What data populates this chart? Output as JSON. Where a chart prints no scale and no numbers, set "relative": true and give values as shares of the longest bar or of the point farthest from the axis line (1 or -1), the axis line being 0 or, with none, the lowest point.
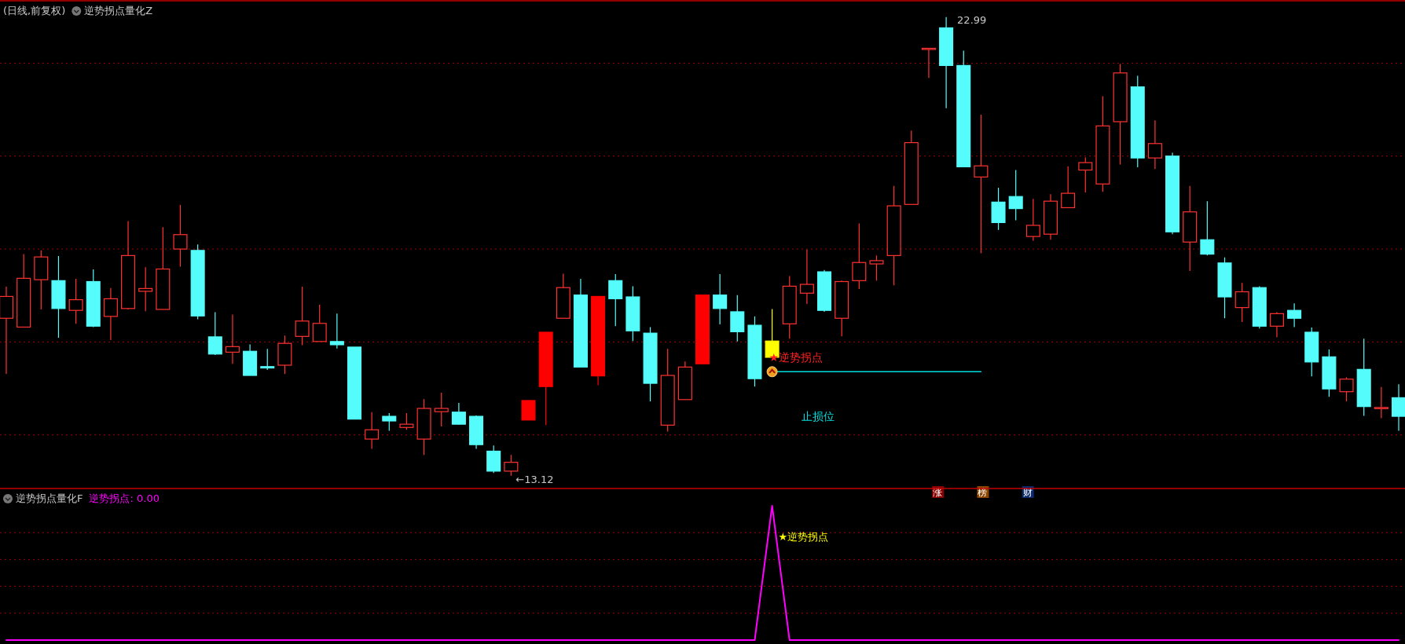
{
  "chart_data": [
    {
      "type": "candlestick",
      "title": "(日线,前复权)",
      "subtitle": "逆势拐点量化Z",
      "grid": "y",
      "categories": [
        null,
        null,
        null,
        null,
        null,
        null,
        null,
        null,
        null,
        null,
        null,
        null,
        null,
        null,
        null,
        null,
        null,
        null,
        null,
        null,
        null,
        null,
        null,
        null,
        null,
        null,
        null,
        null,
        null,
        null,
        null,
        null,
        null,
        null,
        null,
        null,
        null,
        null,
        null,
        null,
        null,
        null,
        null,
        null,
        null,
        null,
        null,
        null,
        null,
        null,
        null,
        null,
        null,
        null,
        null,
        null,
        null,
        null,
        null,
        null,
        null,
        null,
        null,
        null,
        null,
        null,
        null,
        null,
        null,
        null,
        null,
        null,
        null,
        null,
        null,
        null,
        null,
        null,
        null,
        null,
        null
      ],
      "ohlc": [
        [
          16.51,
          17.19,
          15.31,
          16.98
        ],
        [
          16.32,
          17.89,
          16.32,
          17.37
        ],
        [
          17.34,
          17.97,
          16.7,
          17.83
        ],
        [
          17.32,
          17.85,
          16.09,
          16.72
        ],
        [
          16.68,
          17.36,
          16.39,
          16.91
        ],
        [
          17.3,
          17.56,
          16.32,
          16.34
        ],
        [
          16.55,
          17.16,
          16.04,
          16.93
        ],
        [
          16.72,
          18.6,
          16.7,
          17.86
        ],
        [
          17.09,
          17.61,
          16.66,
          17.15
        ],
        [
          16.7,
          18.47,
          16.7,
          17.57
        ],
        [
          18.0,
          18.95,
          17.62,
          18.31
        ],
        [
          17.97,
          18.1,
          16.49,
          16.56
        ],
        [
          16.11,
          16.64,
          15.72,
          15.74
        ],
        [
          15.78,
          16.59,
          15.53,
          15.9
        ],
        [
          15.8,
          15.95,
          15.28,
          15.28
        ],
        [
          15.47,
          15.85,
          15.4,
          15.44
        ],
        [
          15.5,
          16.14,
          15.31,
          15.97
        ],
        [
          16.12,
          17.19,
          15.93,
          16.45
        ],
        [
          16.01,
          16.8,
          16.01,
          16.4
        ],
        [
          16.01,
          16.61,
          15.86,
          15.94
        ],
        [
          15.89,
          15.89,
          14.34,
          14.34
        ],
        [
          13.91,
          14.49,
          13.7,
          14.11
        ],
        [
          14.4,
          14.47,
          14.09,
          14.3
        ],
        [
          14.16,
          14.47,
          14.11,
          14.23
        ],
        [
          13.91,
          14.77,
          13.57,
          14.57
        ],
        [
          14.5,
          14.91,
          14.18,
          14.57
        ],
        [
          14.49,
          14.69,
          14.22,
          14.23
        ],
        [
          14.4,
          14.42,
          13.7,
          13.79
        ],
        [
          13.65,
          13.77,
          13.18,
          13.22
        ],
        [
          13.22,
          13.57,
          13.12,
          13.41
        ],
        [
          14.32,
          14.74,
          14.32,
          14.74
        ],
        [
          15.04,
          16.21,
          14.21,
          16.21
        ],
        [
          16.51,
          17.47,
          16.51,
          17.17
        ],
        [
          17.01,
          17.36,
          15.46,
          15.46
        ],
        [
          15.27,
          16.98,
          15.07,
          16.98
        ],
        [
          17.32,
          17.46,
          16.34,
          16.93
        ],
        [
          16.97,
          17.2,
          16.02,
          16.24
        ],
        [
          16.19,
          16.32,
          14.72,
          15.11
        ],
        [
          14.21,
          15.85,
          14.07,
          15.28
        ],
        [
          14.76,
          15.58,
          14.76,
          15.46
        ],
        [
          15.53,
          17.01,
          15.53,
          17.01
        ],
        [
          17.01,
          17.46,
          16.38,
          16.72
        ],
        [
          16.65,
          17.01,
          16.01,
          16.22
        ],
        [
          16.36,
          16.55,
          15.04,
          15.21
        ],
        [
          15.67,
          16.71,
          15.67,
          16.02
        ],
        [
          16.39,
          17.42,
          16.07,
          17.2
        ],
        [
          17.05,
          17.99,
          16.82,
          17.24
        ],
        [
          17.51,
          17.55,
          16.65,
          16.68
        ],
        [
          16.51,
          17.32,
          16.12,
          17.3
        ],
        [
          17.32,
          18.55,
          17.14,
          17.71
        ],
        [
          17.68,
          17.86,
          17.32,
          17.75
        ],
        [
          17.86,
          19.36,
          17.22,
          18.93
        ],
        [
          18.96,
          20.55,
          18.96,
          20.29
        ],
        [
          22.32,
          22.32,
          21.68,
          22.32
        ],
        [
          22.76,
          22.99,
          21.03,
          21.95
        ],
        [
          21.95,
          22.27,
          19.77,
          19.77
        ],
        [
          19.55,
          20.89,
          17.91,
          19.79
        ],
        [
          19.01,
          19.32,
          18.41,
          18.57
        ],
        [
          19.13,
          19.7,
          18.62,
          18.87
        ],
        [
          18.27,
          19.08,
          18.18,
          18.51
        ],
        [
          18.32,
          19.18,
          18.2,
          19.03
        ],
        [
          18.89,
          19.78,
          18.89,
          19.2
        ],
        [
          19.7,
          19.97,
          19.22,
          19.86
        ],
        [
          19.4,
          21.29,
          19.23,
          20.65
        ],
        [
          20.74,
          21.98,
          19.82,
          21.79
        ],
        [
          21.49,
          21.73,
          19.76,
          19.96
        ],
        [
          19.96,
          20.77,
          19.72,
          20.27
        ],
        [
          20.0,
          20.07,
          18.32,
          18.37
        ],
        [
          18.15,
          19.36,
          17.53,
          18.8
        ],
        [
          18.2,
          19.03,
          17.86,
          17.89
        ],
        [
          17.7,
          17.82,
          16.51,
          16.97
        ],
        [
          16.74,
          17.27,
          16.43,
          17.08
        ],
        [
          17.17,
          17.2,
          16.29,
          16.34
        ],
        [
          16.34,
          16.64,
          16.1,
          16.61
        ],
        [
          16.68,
          16.83,
          16.32,
          16.51
        ],
        [
          16.21,
          16.31,
          15.26,
          15.57
        ],
        [
          15.68,
          15.84,
          14.82,
          14.99
        ],
        [
          14.93,
          15.24,
          14.72,
          15.2
        ],
        [
          15.41,
          16.07,
          14.41,
          14.61
        ],
        [
          14.59,
          15.03,
          14.36,
          14.59
        ],
        [
          14.8,
          15.09,
          14.09,
          14.4
        ]
      ],
      "colors": [
        "#ff3232",
        "#ff3232",
        "#ff3232",
        "#54fcfc",
        "#ff3232",
        "#54fcfc",
        "#ff3232",
        "#ff3232",
        "#ff3232",
        "#ff3232",
        "#ff3232",
        "#54fcfc",
        "#54fcfc",
        "#ff3232",
        "#54fcfc",
        "#54fcfc",
        "#ff3232",
        "#ff3232",
        "#ff3232",
        "#54fcfc",
        "#54fcfc",
        "#ff3232",
        "#54fcfc",
        "#ff3232",
        "#ff3232",
        "#ff3232",
        "#54fcfc",
        "#54fcfc",
        "#54fcfc",
        "#ff3232",
        "#ff0000",
        "#ff0000",
        "#ff3232",
        "#54fcfc",
        "#ff0000",
        "#54fcfc",
        "#54fcfc",
        "#54fcfc",
        "#ff3232",
        "#ff3232",
        "#ff0000",
        "#54fcfc",
        "#54fcfc",
        "#54fcfc",
        "#ffff00",
        "#ff3232",
        "#ff3232",
        "#54fcfc",
        "#ff3232",
        "#ff3232",
        "#ff3232",
        "#ff3232",
        "#ff3232",
        "#ff3232",
        "#54fcfc",
        "#54fcfc",
        "#ff3232",
        "#54fcfc",
        "#54fcfc",
        "#ff3232",
        "#ff3232",
        "#ff3232",
        "#ff3232",
        "#ff3232",
        "#ff3232",
        "#54fcfc",
        "#ff3232",
        "#54fcfc",
        "#ff3232",
        "#54fcfc",
        "#54fcfc",
        "#ff3232",
        "#54fcfc",
        "#ff3232",
        "#54fcfc",
        "#54fcfc",
        "#54fcfc",
        "#ff3232",
        "#54fcfc",
        "#ff3232",
        "#54fcfc"
      ],
      "yticks": [
        {
          "value": 22,
          "label": null
        },
        {
          "value": 20,
          "label": null
        },
        {
          "value": 18,
          "label": null
        },
        {
          "value": 16,
          "label": null
        },
        {
          "value": 14,
          "label": null
        }
      ],
      "series": [
        {
          "name": "止损位",
          "type": "line",
          "color": "#00dede",
          "values": [
            null,
            null,
            null,
            null,
            null,
            null,
            null,
            null,
            null,
            null,
            null,
            null,
            null,
            null,
            null,
            null,
            null,
            null,
            null,
            null,
            null,
            null,
            null,
            null,
            null,
            null,
            null,
            null,
            null,
            null,
            null,
            null,
            null,
            null,
            null,
            null,
            null,
            null,
            null,
            null,
            null,
            null,
            null,
            null,
            15.36,
            15.36,
            15.36,
            15.36,
            15.36,
            15.36,
            15.36,
            15.36,
            15.36,
            15.36,
            15.36,
            15.36,
            15.36,
            null,
            null,
            null,
            null,
            null,
            null,
            null,
            null,
            null,
            null,
            null,
            null,
            null,
            null,
            null,
            null,
            null,
            null,
            null,
            null,
            null,
            null,
            null,
            null
          ]
        }
      ],
      "annotations": [
        "22.99",
        "←13.12",
        "★逆势拐点",
        "涨",
        "榜",
        "财"
      ]
    },
    {
      "type": "line",
      "title": "逆势拐点量化F",
      "relative": true,
      "ref_lines": [
        {
          "axis": "y",
          "value": 0.2,
          "color": "#a00000",
          "line_style": "dotted"
        },
        {
          "axis": "y",
          "value": 0.4,
          "color": "#a00000",
          "line_style": "dotted"
        },
        {
          "axis": "y",
          "value": 0.6,
          "color": "#a00000",
          "line_style": "dotted"
        },
        {
          "axis": "y",
          "value": 0.8,
          "color": "#a00000",
          "line_style": "dotted"
        }
      ],
      "categories": [
        null,
        null,
        null,
        null,
        null,
        null,
        null,
        null,
        null,
        null,
        null,
        null,
        null,
        null,
        null,
        null,
        null,
        null,
        null,
        null,
        null,
        null,
        null,
        null,
        null,
        null,
        null,
        null,
        null,
        null,
        null,
        null,
        null,
        null,
        null,
        null,
        null,
        null,
        null,
        null,
        null,
        null,
        null,
        null,
        null,
        null,
        null,
        null,
        null,
        null,
        null,
        null,
        null,
        null,
        null,
        null,
        null,
        null,
        null,
        null,
        null,
        null,
        null,
        null,
        null,
        null,
        null,
        null,
        null,
        null,
        null,
        null,
        null,
        null,
        null,
        null,
        null,
        null,
        null,
        null,
        null
      ],
      "series": [
        {
          "color": "#ff00ff",
          "values": [
            0,
            0,
            0,
            0,
            0,
            0,
            0,
            0,
            0,
            0,
            0,
            0,
            0,
            0,
            0,
            0,
            0,
            0,
            0,
            0,
            0,
            0,
            0,
            0,
            0,
            0,
            0,
            0,
            0,
            0,
            0,
            0,
            0,
            0,
            0,
            0,
            0,
            0,
            0,
            0,
            0,
            0,
            0,
            0,
            1,
            0,
            0,
            0,
            0,
            0,
            0,
            0,
            0,
            0,
            0,
            0,
            0,
            0,
            0,
            0,
            0,
            0,
            0,
            0,
            0,
            0,
            0,
            0,
            0,
            0,
            0,
            0,
            0,
            0,
            0,
            0,
            0,
            0,
            0,
            0,
            0
          ]
        }
      ],
      "annotations": [
        "逆势拐点: 0.00",
        "★逆势拐点"
      ]
    }
  ]
}
